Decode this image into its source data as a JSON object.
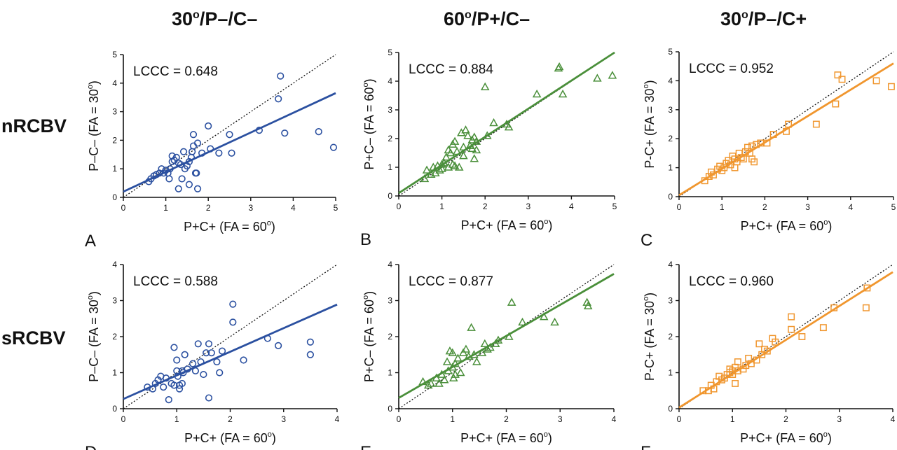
{
  "column_titles": [
    {
      "base": "30",
      "sup": "o",
      "rest": "/P–/C–"
    },
    {
      "base": "60",
      "sup": "o",
      "rest": "/P+/C–"
    },
    {
      "base": "30",
      "sup": "o",
      "rest": "/P–/C+"
    }
  ],
  "row_titles": [
    "nRCBV",
    "sRCBV"
  ],
  "colors": {
    "blue": "#2b50a0",
    "green": "#4a8f3a",
    "orange": "#f0962e"
  },
  "chart_data": [
    {
      "panel_letter": "A",
      "type": "scatter",
      "marker": "circle",
      "color": "#2b50a0",
      "xlabel": "P+C+ (FA = 60",
      "xlabel_sup": "o",
      "xlabel_end": ")",
      "ylabel": "P–C– (FA = 30",
      "ylabel_sup": "o",
      "ylabel_end": ")",
      "annotation": "LCCC = 0.648",
      "xlim": [
        0,
        5
      ],
      "ylim": [
        0,
        5
      ],
      "xticks": [
        0,
        1,
        2,
        3,
        4,
        5
      ],
      "yticks": [
        0,
        1,
        2,
        3,
        4,
        5
      ],
      "fit": {
        "intercept": 0.2,
        "slope": 0.69
      },
      "points": [
        [
          0.6,
          0.55
        ],
        [
          0.65,
          0.65
        ],
        [
          0.72,
          0.75
        ],
        [
          0.78,
          0.8
        ],
        [
          0.85,
          0.85
        ],
        [
          0.9,
          1.0
        ],
        [
          0.95,
          0.85
        ],
        [
          1.0,
          0.95
        ],
        [
          1.05,
          0.85
        ],
        [
          1.08,
          0.65
        ],
        [
          1.1,
          1.0
        ],
        [
          1.15,
          1.25
        ],
        [
          1.15,
          1.45
        ],
        [
          1.2,
          1.3
        ],
        [
          1.25,
          1.4
        ],
        [
          1.3,
          1.2
        ],
        [
          1.3,
          0.3
        ],
        [
          1.35,
          1.15
        ],
        [
          1.38,
          0.65
        ],
        [
          1.42,
          1.6
        ],
        [
          1.45,
          1.0
        ],
        [
          1.5,
          1.1
        ],
        [
          1.55,
          1.25
        ],
        [
          1.55,
          0.45
        ],
        [
          1.6,
          1.4
        ],
        [
          1.62,
          1.6
        ],
        [
          1.65,
          1.8
        ],
        [
          1.65,
          2.2
        ],
        [
          1.7,
          0.85
        ],
        [
          1.72,
          0.85
        ],
        [
          1.75,
          1.9
        ],
        [
          1.75,
          0.3
        ],
        [
          1.85,
          1.55
        ],
        [
          2.0,
          2.5
        ],
        [
          2.05,
          1.7
        ],
        [
          2.25,
          1.55
        ],
        [
          2.5,
          2.2
        ],
        [
          2.55,
          1.55
        ],
        [
          3.2,
          2.35
        ],
        [
          3.65,
          3.45
        ],
        [
          3.7,
          4.25
        ],
        [
          3.8,
          2.25
        ],
        [
          4.6,
          2.3
        ],
        [
          4.95,
          1.75
        ]
      ]
    },
    {
      "panel_letter": "B",
      "type": "scatter",
      "marker": "triangle",
      "color": "#4a8f3a",
      "xlabel": "P+C+ (FA = 60",
      "xlabel_sup": "o",
      "xlabel_end": ")",
      "ylabel": "P+C– (FA = 60",
      "ylabel_sup": "o",
      "ylabel_end": ")",
      "annotation": "LCCC = 0.884",
      "xlim": [
        0,
        5
      ],
      "ylim": [
        0,
        5
      ],
      "xticks": [
        0,
        1,
        2,
        3,
        4,
        5
      ],
      "yticks": [
        0,
        1,
        2,
        3,
        4,
        5
      ],
      "fit": {
        "intercept": 0.1,
        "slope": 0.98
      },
      "points": [
        [
          0.6,
          0.6
        ],
        [
          0.65,
          0.9
        ],
        [
          0.75,
          0.75
        ],
        [
          0.8,
          1.0
        ],
        [
          0.85,
          0.8
        ],
        [
          0.9,
          1.05
        ],
        [
          0.95,
          0.9
        ],
        [
          1.0,
          1.1
        ],
        [
          1.0,
          0.95
        ],
        [
          1.05,
          1.15
        ],
        [
          1.1,
          1.35
        ],
        [
          1.15,
          1.6
        ],
        [
          1.15,
          1.0
        ],
        [
          1.2,
          1.5
        ],
        [
          1.25,
          1.8
        ],
        [
          1.25,
          1.1
        ],
        [
          1.3,
          1.9
        ],
        [
          1.3,
          1.05
        ],
        [
          1.35,
          1.55
        ],
        [
          1.4,
          1.0
        ],
        [
          1.45,
          2.2
        ],
        [
          1.5,
          1.7
        ],
        [
          1.5,
          1.4
        ],
        [
          1.55,
          2.3
        ],
        [
          1.6,
          2.1
        ],
        [
          1.65,
          1.75
        ],
        [
          1.7,
          1.95
        ],
        [
          1.7,
          1.65
        ],
        [
          1.75,
          1.3
        ],
        [
          1.75,
          2.05
        ],
        [
          1.8,
          1.9
        ],
        [
          1.8,
          1.6
        ],
        [
          2.0,
          3.8
        ],
        [
          2.05,
          2.1
        ],
        [
          2.2,
          2.55
        ],
        [
          2.5,
          2.5
        ],
        [
          2.55,
          2.4
        ],
        [
          3.2,
          3.55
        ],
        [
          3.7,
          4.45
        ],
        [
          3.72,
          4.5
        ],
        [
          3.8,
          3.55
        ],
        [
          4.6,
          4.1
        ],
        [
          4.95,
          4.2
        ]
      ]
    },
    {
      "panel_letter": "C",
      "type": "scatter",
      "marker": "square",
      "color": "#f0962e",
      "xlabel": "P+C+ (FA = 60",
      "xlabel_sup": "o",
      "xlabel_end": ")",
      "ylabel": "P-C+ (FA = 30",
      "ylabel_sup": "o",
      "ylabel_end": ")",
      "annotation": "LCCC = 0.952",
      "xlim": [
        0,
        5
      ],
      "ylim": [
        0,
        5
      ],
      "xticks": [
        0,
        1,
        2,
        3,
        4,
        5
      ],
      "yticks": [
        0,
        1,
        2,
        3,
        4,
        5
      ],
      "fit": {
        "intercept": 0.05,
        "slope": 0.91
      },
      "points": [
        [
          0.6,
          0.55
        ],
        [
          0.7,
          0.7
        ],
        [
          0.75,
          0.85
        ],
        [
          0.8,
          0.75
        ],
        [
          0.9,
          0.95
        ],
        [
          0.95,
          1.05
        ],
        [
          1.0,
          0.9
        ],
        [
          1.05,
          1.0
        ],
        [
          1.1,
          1.15
        ],
        [
          1.15,
          1.25
        ],
        [
          1.2,
          1.1
        ],
        [
          1.25,
          1.4
        ],
        [
          1.3,
          1.0
        ],
        [
          1.3,
          1.3
        ],
        [
          1.35,
          1.2
        ],
        [
          1.4,
          1.5
        ],
        [
          1.45,
          1.35
        ],
        [
          1.5,
          1.3
        ],
        [
          1.55,
          1.55
        ],
        [
          1.6,
          1.7
        ],
        [
          1.65,
          1.5
        ],
        [
          1.7,
          1.75
        ],
        [
          1.7,
          1.3
        ],
        [
          1.75,
          1.2
        ],
        [
          1.8,
          1.8
        ],
        [
          1.9,
          1.85
        ],
        [
          2.05,
          1.85
        ],
        [
          2.2,
          2.15
        ],
        [
          2.5,
          2.25
        ],
        [
          2.55,
          2.5
        ],
        [
          3.2,
          2.5
        ],
        [
          3.65,
          3.2
        ],
        [
          3.7,
          4.2
        ],
        [
          3.8,
          4.05
        ],
        [
          4.6,
          4.0
        ],
        [
          4.95,
          3.8
        ]
      ]
    },
    {
      "panel_letter": "D",
      "type": "scatter",
      "marker": "circle",
      "color": "#2b50a0",
      "xlabel": "P+C+ (FA = 60",
      "xlabel_sup": "o",
      "xlabel_end": ")",
      "ylabel": "P–C– (FA = 30",
      "ylabel_sup": "o",
      "ylabel_end": ")",
      "annotation": "LCCC = 0.588",
      "xlim": [
        0,
        4
      ],
      "ylim": [
        0,
        4
      ],
      "xticks": [
        0,
        1,
        2,
        3,
        4
      ],
      "yticks": [
        0,
        1,
        2,
        3,
        4
      ],
      "fit": {
        "intercept": 0.27,
        "slope": 0.655
      },
      "points": [
        [
          0.45,
          0.6
        ],
        [
          0.55,
          0.55
        ],
        [
          0.6,
          0.7
        ],
        [
          0.65,
          0.8
        ],
        [
          0.7,
          0.9
        ],
        [
          0.75,
          0.6
        ],
        [
          0.8,
          0.85
        ],
        [
          0.85,
          0.25
        ],
        [
          0.9,
          0.7
        ],
        [
          0.95,
          1.7
        ],
        [
          0.95,
          0.65
        ],
        [
          1.0,
          1.05
        ],
        [
          1.0,
          1.35
        ],
        [
          1.02,
          0.9
        ],
        [
          1.05,
          0.65
        ],
        [
          1.05,
          0.55
        ],
        [
          1.1,
          1.05
        ],
        [
          1.1,
          0.7
        ],
        [
          1.12,
          1.0
        ],
        [
          1.15,
          1.5
        ],
        [
          1.2,
          1.1
        ],
        [
          1.3,
          1.25
        ],
        [
          1.35,
          1.05
        ],
        [
          1.4,
          1.8
        ],
        [
          1.45,
          1.3
        ],
        [
          1.5,
          0.95
        ],
        [
          1.55,
          1.55
        ],
        [
          1.6,
          1.8
        ],
        [
          1.6,
          0.3
        ],
        [
          1.65,
          1.55
        ],
        [
          1.75,
          1.3
        ],
        [
          1.8,
          1.0
        ],
        [
          1.85,
          1.6
        ],
        [
          2.05,
          2.9
        ],
        [
          2.05,
          2.4
        ],
        [
          2.25,
          1.35
        ],
        [
          2.7,
          1.95
        ],
        [
          2.9,
          1.75
        ],
        [
          3.5,
          1.85
        ],
        [
          3.5,
          1.5
        ]
      ]
    },
    {
      "panel_letter": "E",
      "type": "scatter",
      "marker": "triangle",
      "color": "#4a8f3a",
      "xlabel": "P+C+ (FA = 60",
      "xlabel_sup": "o",
      "xlabel_end": ")",
      "ylabel": "P+C– (FA = 60",
      "ylabel_sup": "o",
      "ylabel_end": ")",
      "annotation": "LCCC = 0.877",
      "xlim": [
        0,
        4
      ],
      "ylim": [
        0,
        4
      ],
      "xticks": [
        0,
        1,
        2,
        3,
        4
      ],
      "yticks": [
        0,
        1,
        2,
        3,
        4
      ],
      "fit": {
        "intercept": 0.3,
        "slope": 0.86
      },
      "points": [
        [
          0.45,
          0.75
        ],
        [
          0.55,
          0.65
        ],
        [
          0.6,
          0.7
        ],
        [
          0.7,
          0.85
        ],
        [
          0.75,
          0.7
        ],
        [
          0.8,
          0.95
        ],
        [
          0.85,
          0.8
        ],
        [
          0.9,
          1.3
        ],
        [
          0.92,
          1.05
        ],
        [
          0.95,
          1.6
        ],
        [
          1.0,
          1.55
        ],
        [
          1.0,
          1.15
        ],
        [
          1.02,
          0.85
        ],
        [
          1.05,
          1.25
        ],
        [
          1.05,
          0.95
        ],
        [
          1.1,
          1.4
        ],
        [
          1.15,
          1.0
        ],
        [
          1.2,
          1.55
        ],
        [
          1.25,
          1.65
        ],
        [
          1.3,
          1.45
        ],
        [
          1.35,
          2.25
        ],
        [
          1.4,
          1.5
        ],
        [
          1.45,
          1.3
        ],
        [
          1.55,
          1.55
        ],
        [
          1.6,
          1.8
        ],
        [
          1.65,
          1.65
        ],
        [
          1.7,
          1.7
        ],
        [
          1.8,
          1.8
        ],
        [
          1.85,
          1.9
        ],
        [
          2.05,
          2.0
        ],
        [
          2.1,
          2.95
        ],
        [
          2.3,
          2.4
        ],
        [
          2.7,
          2.55
        ],
        [
          2.9,
          2.4
        ],
        [
          3.5,
          2.95
        ],
        [
          3.52,
          2.85
        ]
      ]
    },
    {
      "panel_letter": "F",
      "type": "scatter",
      "marker": "square",
      "color": "#f0962e",
      "xlabel": "P+C+ (FA = 60",
      "xlabel_sup": "o",
      "xlabel_end": ")",
      "ylabel": "P-C+ (FA = 30",
      "ylabel_sup": "o",
      "ylabel_end": ")",
      "annotation": "LCCC = 0.960",
      "xlim": [
        0,
        4
      ],
      "ylim": [
        0,
        4
      ],
      "xticks": [
        0,
        1,
        2,
        3,
        4
      ],
      "yticks": [
        0,
        1,
        2,
        3,
        4
      ],
      "fit": {
        "intercept": 0.03,
        "slope": 0.94
      },
      "points": [
        [
          0.45,
          0.5
        ],
        [
          0.55,
          0.5
        ],
        [
          0.6,
          0.65
        ],
        [
          0.65,
          0.55
        ],
        [
          0.7,
          0.75
        ],
        [
          0.75,
          0.9
        ],
        [
          0.8,
          0.8
        ],
        [
          0.85,
          0.85
        ],
        [
          0.9,
          0.95
        ],
        [
          0.95,
          1.0
        ],
        [
          0.95,
          1.1
        ],
        [
          1.0,
          0.95
        ],
        [
          1.0,
          1.05
        ],
        [
          1.05,
          0.7
        ],
        [
          1.05,
          1.15
        ],
        [
          1.1,
          1.05
        ],
        [
          1.1,
          1.3
        ],
        [
          1.2,
          1.1
        ],
        [
          1.25,
          1.2
        ],
        [
          1.3,
          1.4
        ],
        [
          1.35,
          1.25
        ],
        [
          1.45,
          1.35
        ],
        [
          1.5,
          1.8
        ],
        [
          1.55,
          1.5
        ],
        [
          1.6,
          1.65
        ],
        [
          1.65,
          1.6
        ],
        [
          1.75,
          1.95
        ],
        [
          1.8,
          1.85
        ],
        [
          2.1,
          2.55
        ],
        [
          2.1,
          2.2
        ],
        [
          2.3,
          2.0
        ],
        [
          2.7,
          2.25
        ],
        [
          2.9,
          2.8
        ],
        [
          3.5,
          2.8
        ],
        [
          3.52,
          3.35
        ]
      ]
    }
  ]
}
